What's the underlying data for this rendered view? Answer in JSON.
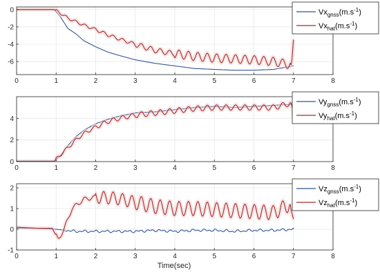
{
  "colors": {
    "gnss": "#2f5597",
    "hat": "#a52a2a",
    "band": "#f3d1d1",
    "axis": "#262626",
    "grid": "#e6e6e6"
  },
  "chart_data": [
    {
      "type": "line",
      "xlim": [
        0,
        8
      ],
      "ylim": [
        -7.5,
        0.3
      ],
      "xticks": [
        0,
        1,
        2,
        3,
        4,
        5,
        6,
        7,
        8
      ],
      "yticks": [
        -6,
        -4,
        -2,
        0
      ],
      "grid": true,
      "legend": "outside-right",
      "xlabel": "",
      "series": [
        {
          "key": "gnss",
          "name": {
            "main": "Vx",
            "sub": "gnss",
            "unit": "(m.s",
            "exp": "-1",
            "close": ")"
          },
          "x": [
            0,
            0.5,
            0.95,
            1.1,
            1.3,
            1.5,
            1.7,
            2.0,
            2.3,
            2.6,
            3.0,
            3.5,
            4.0,
            4.5,
            5.0,
            5.5,
            6.0,
            6.5,
            7.0
          ],
          "y": [
            0,
            0,
            0,
            -0.8,
            -2.2,
            -2.8,
            -3.6,
            -4.3,
            -4.9,
            -5.3,
            -5.8,
            -6.2,
            -6.5,
            -6.8,
            -6.9,
            -7.0,
            -7.0,
            -6.9,
            -6.5
          ]
        },
        {
          "key": "hat",
          "name": {
            "main": "Vx",
            "sub": "hat",
            "unit": "(m.s",
            "exp": "-1",
            "close": ")"
          },
          "x": [
            0,
            0.5,
            0.95,
            1.1,
            1.3,
            1.5,
            1.7,
            2.0,
            2.3,
            2.6,
            3.0,
            3.5,
            4.0,
            4.5,
            5.0,
            5.5,
            6.0,
            6.5,
            6.95,
            7.0
          ],
          "y": [
            0,
            0,
            0,
            -0.4,
            -1.0,
            -1.4,
            -1.8,
            -2.3,
            -2.9,
            -3.4,
            -4.0,
            -4.7,
            -5.1,
            -5.4,
            -5.6,
            -5.7,
            -5.8,
            -6.0,
            -6.4,
            -3.5
          ],
          "wiggle": [
            0.0,
            0.15,
            0.18,
            0.3,
            0.5,
            0.5,
            0.5,
            0.5,
            0.5,
            0.5
          ]
        }
      ]
    },
    {
      "type": "line",
      "xlim": [
        0,
        8
      ],
      "ylim": [
        0,
        6
      ],
      "xticks": [
        0,
        1,
        2,
        3,
        4,
        5,
        6,
        7,
        8
      ],
      "yticks": [
        0,
        2,
        4
      ],
      "grid": true,
      "legend": "outside-right",
      "xlabel": "",
      "series": [
        {
          "key": "gnss",
          "name": {
            "main": "Vy",
            "sub": "gnss",
            "unit": "(m.s",
            "exp": "-1",
            "close": ")"
          },
          "x": [
            0,
            0.5,
            0.95,
            1.1,
            1.3,
            1.5,
            1.7,
            2.0,
            2.3,
            2.6,
            3.0,
            3.5,
            4.0,
            4.5,
            5.0,
            5.5,
            6.0,
            6.5,
            7.0
          ],
          "y": [
            0.05,
            0.05,
            0.05,
            0.5,
            1.5,
            2.3,
            2.9,
            3.5,
            3.9,
            4.2,
            4.5,
            4.6,
            4.8,
            5.0,
            5.1,
            5.0,
            5.1,
            5.2,
            5.3
          ]
        },
        {
          "key": "hat",
          "name": {
            "main": "Vy",
            "sub": "hat",
            "unit": "(m.s",
            "exp": "-1",
            "close": ")"
          },
          "x": [
            0,
            0.5,
            0.95,
            1.1,
            1.3,
            1.5,
            1.7,
            2.0,
            2.3,
            2.6,
            3.0,
            3.5,
            4.0,
            4.5,
            5.0,
            5.5,
            6.0,
            6.5,
            6.95,
            7.0
          ],
          "y": [
            0.02,
            0.02,
            0.02,
            0.6,
            1.3,
            2.0,
            2.6,
            3.2,
            3.7,
            4.0,
            4.3,
            4.5,
            4.7,
            4.9,
            5.0,
            5.0,
            5.0,
            5.0,
            5.4,
            4.2
          ],
          "wiggle": [
            0.0,
            0.15,
            0.2,
            0.25,
            0.25,
            0.25,
            0.25,
            0.25,
            0.25,
            0.25
          ]
        }
      ]
    },
    {
      "type": "line",
      "xlim": [
        0,
        8
      ],
      "ylim": [
        -1,
        2.2
      ],
      "xticks": [
        0,
        1,
        2,
        3,
        4,
        5,
        6,
        7,
        8
      ],
      "yticks": [
        -1,
        0,
        1,
        2
      ],
      "grid": true,
      "legend": "outside-right",
      "xlabel": "Time(sec)",
      "series": [
        {
          "key": "gnss",
          "name": {
            "main": "Vz",
            "sub": "gnss",
            "unit": "(m.s",
            "exp": "-1",
            "close": ")"
          },
          "x": [
            0,
            0.5,
            1.0,
            1.5,
            2.0,
            2.5,
            3.0,
            3.5,
            4.0,
            4.5,
            5.0,
            5.5,
            6.0,
            6.5,
            7.0
          ],
          "y": [
            0.05,
            0.05,
            0.0,
            -0.1,
            -0.1,
            -0.1,
            -0.1,
            -0.05,
            -0.1,
            -0.05,
            -0.05,
            -0.1,
            -0.05,
            -0.05,
            0.0
          ],
          "jitter": 0.07
        },
        {
          "key": "hat",
          "name": {
            "main": "Vz",
            "sub": "hat",
            "unit": "(m.s",
            "exp": "-1",
            "close": ")"
          },
          "x": [
            0,
            0.5,
            0.9,
            1.05,
            1.2,
            1.4,
            1.7,
            2.0,
            2.5,
            3.0,
            3.5,
            4.0,
            4.5,
            5.0,
            5.5,
            6.0,
            6.5,
            6.9,
            7.0
          ],
          "y": [
            0.1,
            0.05,
            0.05,
            -0.5,
            0.0,
            1.0,
            1.45,
            1.55,
            1.5,
            1.3,
            1.1,
            1.0,
            1.0,
            0.95,
            0.9,
            0.85,
            0.8,
            1.2,
            0.5
          ],
          "wiggle": [
            0.0,
            0.1,
            0.3,
            0.35,
            0.35,
            0.35,
            0.35,
            0.35,
            0.35,
            0.35
          ]
        }
      ]
    }
  ]
}
